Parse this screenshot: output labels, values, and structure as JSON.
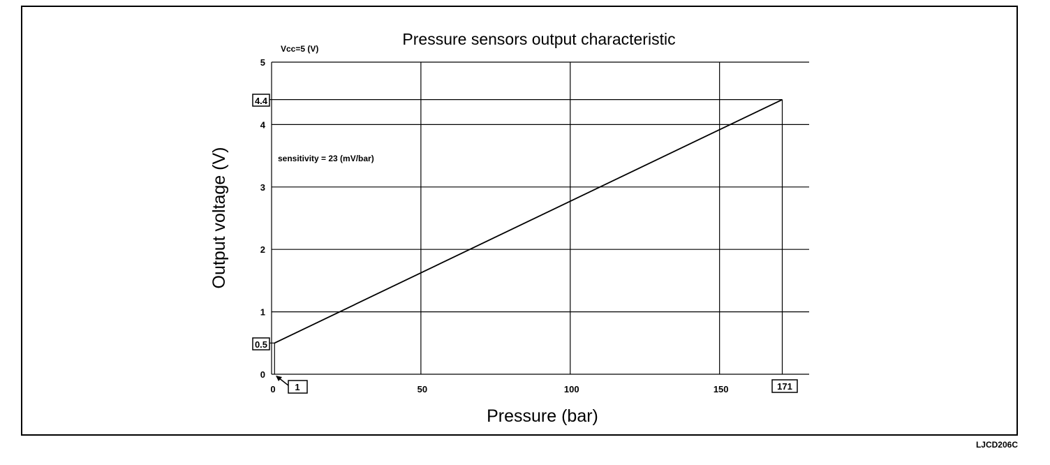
{
  "chart_data": {
    "type": "line",
    "title": "Pressure sensors output characteristic",
    "xlabel": "Pressure (bar)",
    "ylabel": "Output voltage (V)",
    "xlim": [
      0,
      180
    ],
    "ylim": [
      0,
      5
    ],
    "x_ticks": [
      0,
      50,
      100,
      150
    ],
    "y_ticks": [
      0,
      1,
      2,
      3,
      4,
      5
    ],
    "x_tick_labels": [
      "0",
      "50",
      "100",
      "150"
    ],
    "y_tick_labels": [
      "0",
      "1",
      "2",
      "3",
      "4",
      "5"
    ],
    "grid": true,
    "series": [
      {
        "x": [
          1,
          171
        ],
        "y": [
          0.5,
          4.4
        ]
      }
    ],
    "annotations": {
      "supply": "Vcc=5 (V)",
      "sensitivity": "sensitivity = 23 (mV/bar)",
      "marked_voltage_low": "0.5",
      "marked_voltage_high": "4.4",
      "marked_pressure_low": "1",
      "marked_pressure_high": "171"
    }
  },
  "figure_code": "LJCD206C"
}
